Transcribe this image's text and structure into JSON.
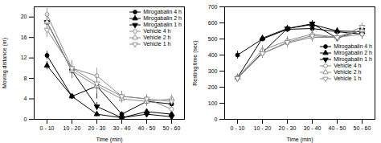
{
  "chart_data": [
    {
      "type": "line",
      "categories": [
        "0 - 10",
        "10 - 20",
        "20 - 30",
        "30 - 40",
        "40 - 50",
        "50 - 60"
      ],
      "xlabel": "Time (min)",
      "ylabel": "Moving distance (m)",
      "ylim": [
        0,
        22
      ],
      "yticks": [
        0,
        4,
        8,
        12,
        16,
        20
      ],
      "legend": "upper right",
      "series": [
        {
          "name": "Mirogabalin 4 h",
          "color": "#000000",
          "marker": "circle",
          "values": [
            12.5,
            4.5,
            6.5,
            1.0,
            3.5,
            3.0
          ],
          "errors": [
            0.8,
            0.5,
            2.5,
            0.5,
            0.8,
            0.8
          ]
        },
        {
          "name": "Mirogabalin 2 h",
          "color": "#000000",
          "marker": "triangle-up",
          "values": [
            10.5,
            4.5,
            1.0,
            0.3,
            1.5,
            1.0
          ],
          "errors": [
            0.8,
            0.5,
            0.5,
            0.3,
            0.5,
            0.5
          ]
        },
        {
          "name": "Mirogabalin 1 h",
          "color": "#000000",
          "marker": "triangle-down",
          "values": [
            19.0,
            9.5,
            2.5,
            0.3,
            1.0,
            0.5
          ],
          "errors": [
            1.5,
            1.5,
            0.8,
            0.3,
            0.5,
            0.3
          ]
        },
        {
          "name": "Vehicle 4 h",
          "color": "#888888",
          "marker": "circle-open",
          "values": [
            20.5,
            10.0,
            8.5,
            4.5,
            4.0,
            2.0
          ],
          "errors": [
            1.2,
            1.5,
            1.5,
            1.0,
            0.8,
            0.5
          ]
        },
        {
          "name": "Vehicle 2 h",
          "color": "#888888",
          "marker": "triangle-up-open",
          "values": [
            19.0,
            9.5,
            6.5,
            4.0,
            3.5,
            4.0
          ],
          "errors": [
            1.5,
            1.5,
            1.5,
            0.8,
            1.0,
            0.8
          ]
        },
        {
          "name": "Vehicle 1 h",
          "color": "#888888",
          "marker": "triangle-down-open",
          "values": [
            17.5,
            10.0,
            7.0,
            4.5,
            4.0,
            3.5
          ],
          "errors": [
            1.5,
            1.5,
            1.5,
            1.0,
            0.8,
            0.8
          ]
        }
      ]
    },
    {
      "type": "line",
      "categories": [
        "0 - 10",
        "10 - 20",
        "20 - 30",
        "30 - 40",
        "40 - 50",
        "50 - 60"
      ],
      "xlabel": "Time (min)",
      "ylabel": "Resting time (sec)",
      "ylim": [
        0,
        700
      ],
      "yticks": [
        0,
        100,
        200,
        300,
        400,
        500,
        600,
        700
      ],
      "legend": "center right",
      "series": [
        {
          "name": "Mirogabalin 4 h",
          "color": "#000000",
          "marker": "circle",
          "values": [
            400,
            500,
            560,
            565,
            545,
            530
          ],
          "errors": [
            25,
            15,
            15,
            25,
            20,
            30
          ]
        },
        {
          "name": "Mirogabalin 2 h",
          "color": "#000000",
          "marker": "triangle-up",
          "values": [
            260,
            505,
            565,
            590,
            550,
            545
          ],
          "errors": [
            20,
            15,
            20,
            20,
            20,
            25
          ]
        },
        {
          "name": "Mirogabalin 1 h",
          "color": "#000000",
          "marker": "triangle-down",
          "values": [
            255,
            415,
            565,
            595,
            505,
            555
          ],
          "errors": [
            20,
            30,
            20,
            20,
            25,
            20
          ]
        },
        {
          "name": "Vehicle 4 h",
          "color": "#888888",
          "marker": "circle-open",
          "values": [
            260,
            410,
            475,
            510,
            510,
            530
          ],
          "errors": [
            25,
            30,
            30,
            30,
            30,
            25
          ]
        },
        {
          "name": "Vehicle 2 h",
          "color": "#888888",
          "marker": "triangle-up-open",
          "values": [
            260,
            430,
            490,
            530,
            510,
            555
          ],
          "errors": [
            25,
            30,
            25,
            30,
            30,
            25
          ]
        },
        {
          "name": "Vehicle 1 h",
          "color": "#888888",
          "marker": "triangle-down-open",
          "values": [
            255,
            410,
            480,
            520,
            510,
            575
          ],
          "errors": [
            25,
            30,
            25,
            30,
            25,
            25
          ]
        }
      ]
    }
  ]
}
